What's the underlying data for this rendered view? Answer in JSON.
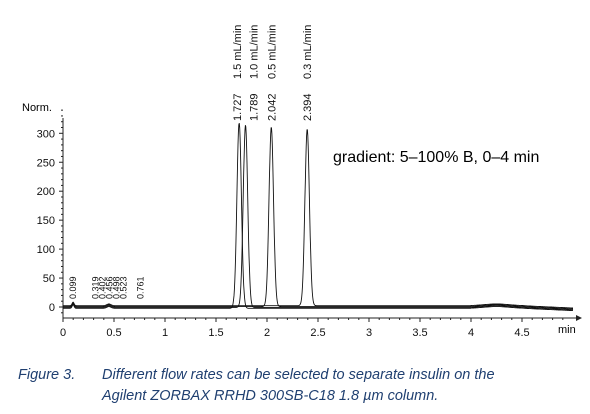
{
  "chart_data": {
    "type": "line",
    "ylabel": "Norm.",
    "xlabel": "min",
    "xlim": [
      0,
      5.0
    ],
    "ylim": [
      -10,
      350
    ],
    "xticks": [
      "0",
      "0.5",
      "1",
      "1.5",
      "2",
      "2.5",
      "3",
      "3.5",
      "4",
      "4.5"
    ],
    "xtick_values": [
      0,
      0.5,
      1,
      1.5,
      2,
      2.5,
      3,
      3.5,
      4,
      4.5
    ],
    "yticks": [
      "0",
      "50",
      "100",
      "150",
      "200",
      "250",
      "300"
    ],
    "ytick_values": [
      0,
      50,
      100,
      150,
      200,
      250,
      300
    ],
    "annotation": "gradient: 5–100% B, 0–4 min",
    "series": [
      {
        "name": "1.5 mL/min",
        "peak_rt": 1.727,
        "peak_label": "1.727",
        "height": 320
      },
      {
        "name": "1.0 mL/min",
        "peak_rt": 1.789,
        "peak_label": "1.789",
        "height": 315
      },
      {
        "name": "0.5 mL/min",
        "peak_rt": 2.042,
        "peak_label": "2.042",
        "height": 310
      },
      {
        "name": "0.3 mL/min",
        "peak_rt": 2.394,
        "peak_label": "2.394",
        "height": 305
      }
    ],
    "small_peaks": [
      {
        "rt": 0.099,
        "label": "0.099"
      },
      {
        "rt": 0.319,
        "label": "0.319"
      },
      {
        "rt": 0.402,
        "label": "0.402"
      },
      {
        "rt": 0.456,
        "label": "0.456"
      },
      {
        "rt": 0.498,
        "label": "0.498"
      },
      {
        "rt": 0.523,
        "label": "0.523"
      },
      {
        "rt": 0.761,
        "label": "0.761"
      }
    ]
  },
  "caption": {
    "figure": "Figure 3.",
    "line1": "Different flow rates can be selected to separate insulin on the",
    "line2": "Agilent ZORBAX RRHD 300SB-C18 1.8 µm column."
  }
}
